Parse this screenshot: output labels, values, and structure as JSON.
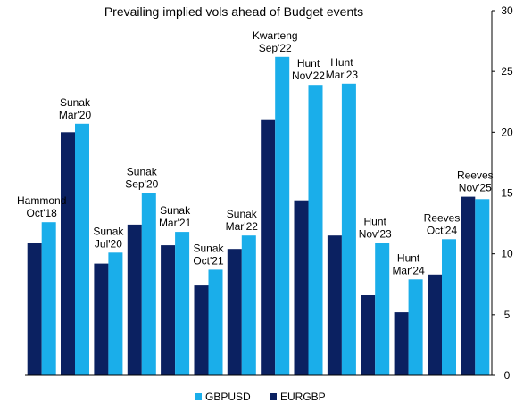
{
  "chart_data": {
    "type": "bar",
    "title": "Prevailing implied vols ahead of Budget events",
    "categories": [
      [
        "Hammond",
        "Oct'18"
      ],
      [
        "Sunak",
        "Mar'20"
      ],
      [
        "Sunak",
        "Jul'20"
      ],
      [
        "Sunak",
        "Sep'20"
      ],
      [
        "Sunak",
        "Mar'21"
      ],
      [
        "Sunak",
        "Oct'21"
      ],
      [
        "Sunak",
        "Mar'22"
      ],
      [
        "Kwarteng",
        "Sep'22"
      ],
      [
        "Hunt",
        "Nov'22"
      ],
      [
        "Hunt",
        "Mar'23"
      ],
      [
        "Hunt",
        "Nov'23"
      ],
      [
        "Hunt",
        "Mar'24"
      ],
      [
        "Reeves",
        "Oct'24"
      ],
      [
        "Reeves",
        "Nov'25"
      ]
    ],
    "series": [
      {
        "name": "EURGBP",
        "color": "#0b2161",
        "values": [
          10.9,
          20.0,
          9.2,
          12.4,
          10.7,
          7.4,
          10.4,
          21.0,
          14.4,
          11.5,
          6.6,
          5.2,
          8.3,
          14.7
        ]
      },
      {
        "name": "GBPUSD",
        "color": "#1aaeea",
        "values": [
          12.6,
          20.7,
          10.1,
          15.0,
          11.8,
          8.7,
          11.5,
          26.2,
          23.9,
          24.0,
          10.9,
          7.9,
          11.2,
          14.5
        ]
      }
    ],
    "legend": [
      {
        "name": "GBPUSD",
        "color": "#1aaeea"
      },
      {
        "name": "EURGBP",
        "color": "#0b2161"
      }
    ],
    "legend_position": "bottom",
    "ylim": [
      0,
      30
    ],
    "yticks": [
      0,
      5,
      10,
      15,
      20,
      25,
      30
    ],
    "y_axis_side": "right",
    "grid": false,
    "xlabel": "",
    "ylabel": ""
  }
}
